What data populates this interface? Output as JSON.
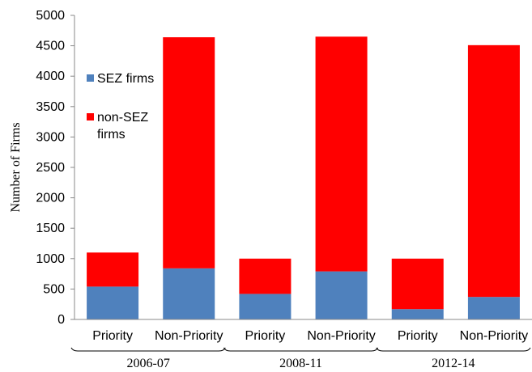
{
  "chart_data": {
    "type": "bar",
    "stacked": true,
    "ylabel": "Number of Firms",
    "ylim": [
      0,
      5000
    ],
    "yticks": [
      "0",
      "500",
      "1000",
      "1500",
      "2000",
      "2500",
      "3000",
      "3500",
      "4000",
      "4500",
      "5000"
    ],
    "categories": [
      "Priority",
      "Non-Priority",
      "Priority",
      "Non-Priority",
      "Priority",
      "Non-Priority"
    ],
    "groups": [
      "2006-07",
      "2008-11",
      "2012-14"
    ],
    "series": [
      {
        "name": "SEZ firms",
        "color": "#4f81bd",
        "values": [
          540,
          840,
          420,
          790,
          170,
          370
        ]
      },
      {
        "name": "non-SEZ firms",
        "color": "#ff0000",
        "values": [
          560,
          3800,
          580,
          3860,
          830,
          4140
        ]
      }
    ],
    "legend": {
      "position": "top-left",
      "items": [
        {
          "lines": [
            "SEZ firms"
          ]
        },
        {
          "lines": [
            "non-SEZ",
            "firms"
          ]
        }
      ]
    },
    "grid": false
  }
}
